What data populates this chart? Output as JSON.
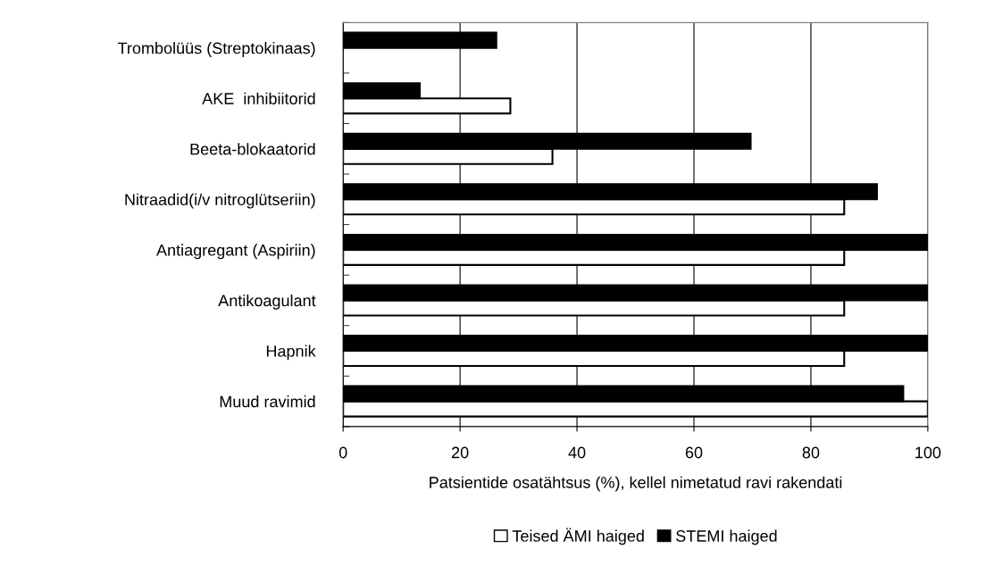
{
  "chart_data": {
    "type": "bar",
    "orientation": "horizontal",
    "xlabel": "Patsientide osatähtsus (%), kellel nimetatud ravi rakendati",
    "categories": [
      "Trombolüüs (Streptokinaas)",
      "AKE  inhibiitorid",
      "Beeta-blokaatorid",
      "Nitraadid(i/v nitroglütseriin)",
      "Antiagregant (Aspiriin)",
      "Antikoagulant",
      "Hapnik",
      "Muud ravimid"
    ],
    "series": [
      {
        "name": "Teised ÄMI haiged",
        "color": "#ffffff",
        "values": [
          null,
          28.6,
          35.8,
          85.7,
          85.7,
          85.7,
          85.7,
          100
        ]
      },
      {
        "name": "STEMI haiged",
        "color": "#000000",
        "values": [
          26.2,
          13.1,
          69.7,
          91.3,
          100,
          100,
          100,
          95.8
        ]
      }
    ],
    "xlim": [
      0,
      100
    ],
    "xticks": [
      0,
      20,
      40,
      60,
      80,
      100
    ],
    "grid": "x",
    "legend": "bottom"
  }
}
